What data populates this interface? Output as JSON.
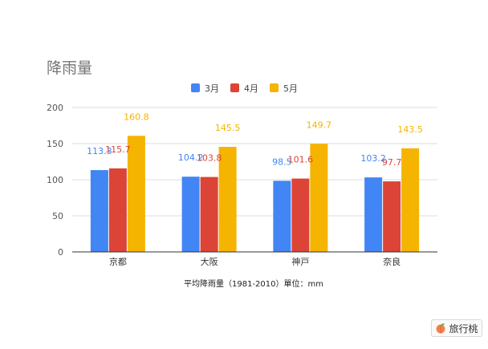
{
  "chart_data": {
    "type": "bar",
    "title": "降雨量",
    "categories": [
      "京都",
      "大阪",
      "神戸",
      "奈良"
    ],
    "series": [
      {
        "name": "3月",
        "color": "#4285F4",
        "values": [
          113.3,
          104.2,
          98.5,
          103.2
        ]
      },
      {
        "name": "4月",
        "color": "#DB4437",
        "values": [
          115.7,
          103.8,
          101.6,
          97.7
        ]
      },
      {
        "name": "5月",
        "color": "#F4B400",
        "values": [
          160.8,
          145.5,
          149.7,
          143.5
        ]
      }
    ],
    "data_labels": [
      [
        "113.3",
        "115.7",
        "160.8"
      ],
      [
        "104.2",
        "103.8",
        "145.5"
      ],
      [
        "98.5",
        "101.6",
        "149.7"
      ],
      [
        "103.2",
        "97.7",
        "143.5"
      ]
    ],
    "xlabel": "平均降雨量（1981-2010）單位：mm",
    "ylabel": "",
    "ylim": [
      0,
      200
    ],
    "yticks": [
      0,
      50,
      100,
      150,
      200
    ],
    "grid": true,
    "legend_position": "top"
  },
  "watermark": {
    "text": "旅行桃",
    "icon": "peach-icon"
  }
}
